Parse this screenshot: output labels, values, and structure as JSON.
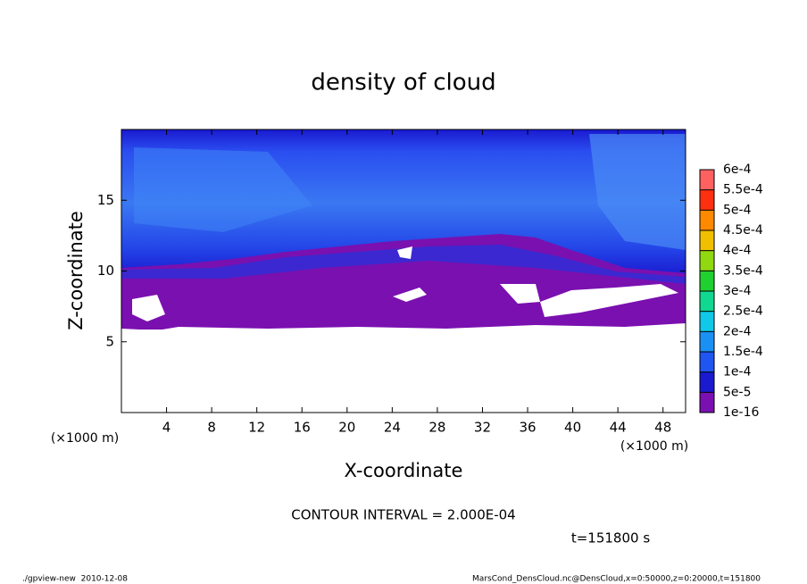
{
  "chart_data": {
    "type": "contour",
    "title": "density of cloud",
    "x_label": "X-coordinate",
    "y_label": "Z-coordinate",
    "x_unit": "(×1000 m)",
    "y_unit": "(×1000 m)",
    "xlim": [
      0,
      50
    ],
    "xticks": [
      4,
      8,
      12,
      16,
      20,
      24,
      28,
      32,
      36,
      40,
      44,
      48
    ],
    "ylim": [
      0,
      20
    ],
    "yticks": [
      5,
      10,
      15
    ],
    "colorbar": {
      "levels": [
        {
          "value": 1e-16,
          "label": "1e-16"
        },
        {
          "value": 5e-05,
          "label": "5e-5"
        },
        {
          "value": 0.0001,
          "label": "1e-4"
        },
        {
          "value": 0.00015,
          "label": "1.5e-4"
        },
        {
          "value": 0.0002,
          "label": "2e-4"
        },
        {
          "value": 0.00025,
          "label": "2.5e-4"
        },
        {
          "value": 0.0003,
          "label": "3e-4"
        },
        {
          "value": 0.00035,
          "label": "3.5e-4"
        },
        {
          "value": 0.0004,
          "label": "4e-4"
        },
        {
          "value": 0.00045,
          "label": "4.5e-4"
        },
        {
          "value": 0.0005,
          "label": "5e-4"
        },
        {
          "value": 0.00055,
          "label": "5.5e-4"
        },
        {
          "value": 0.0006,
          "label": "6e-4"
        }
      ],
      "colors": [
        "#7a10b0",
        "#1a1ad0",
        "#1f55f0",
        "#1a90f5",
        "#10c8e8",
        "#10d890",
        "#20d030",
        "#90d810",
        "#f0c000",
        "#ff8a00",
        "#ff3010",
        "#ff6060"
      ]
    },
    "contour_interval": "CONTOUR INTERVAL = 2.000E-04",
    "time_label": "t=151800 s",
    "footer_left": "./gpview-new  2010-12-08",
    "footer_right": "MarsCond_DensCloud.nc@DensCloud,x=0:50000,z=0:20000,t=151800"
  }
}
